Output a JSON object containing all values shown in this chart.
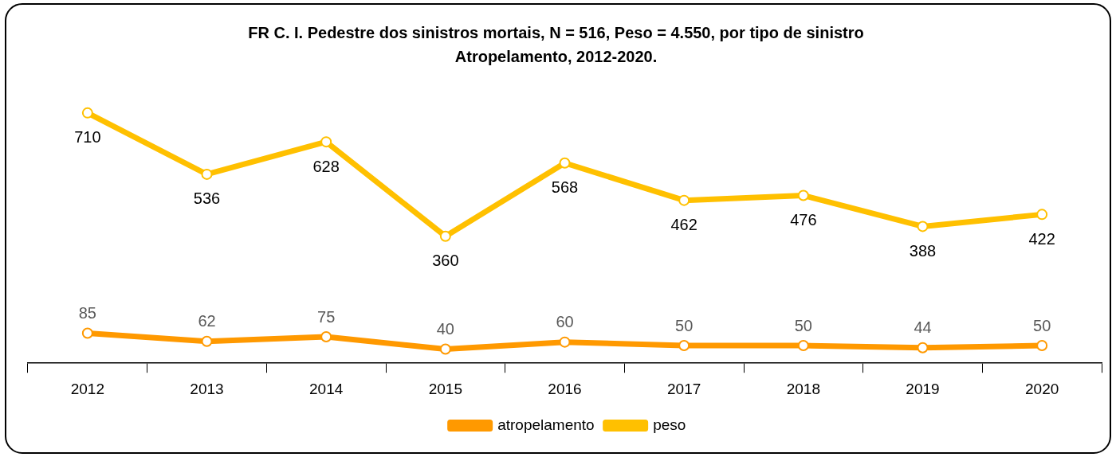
{
  "chart_data": {
    "type": "line",
    "title": "FR C. I. Pedestre dos sinistros mortais, N = 516, Peso = 4.550, por tipo de sinistro Atropelamento, 2012-2020.",
    "categories": [
      "2012",
      "2013",
      "2014",
      "2015",
      "2016",
      "2017",
      "2018",
      "2019",
      "2020"
    ],
    "series": [
      {
        "name": "atropelamento",
        "color": "#ff9900",
        "values": [
          85,
          62,
          75,
          40,
          60,
          50,
          50,
          44,
          50
        ]
      },
      {
        "name": "peso",
        "color": "#ffc000",
        "values": [
          710,
          536,
          628,
          360,
          568,
          462,
          476,
          388,
          422
        ]
      }
    ],
    "tick_labels": "x",
    "data_labels": true,
    "marker": "circle",
    "line_style": "solid",
    "legend": "bottom",
    "grid": false
  }
}
